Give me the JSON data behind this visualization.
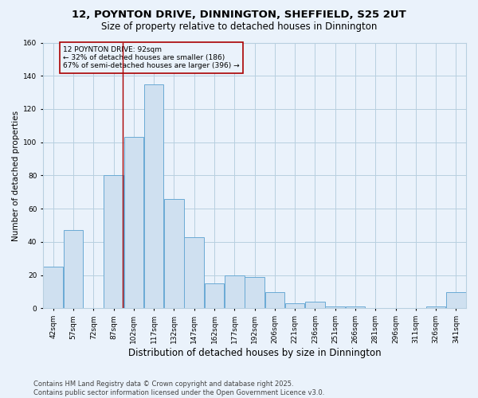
{
  "title_line1": "12, POYNTON DRIVE, DINNINGTON, SHEFFIELD, S25 2UT",
  "title_line2": "Size of property relative to detached houses in Dinnington",
  "xlabel": "Distribution of detached houses by size in Dinnington",
  "ylabel": "Number of detached properties",
  "bar_color": "#cfe0f0",
  "bar_edge_color": "#6aaad4",
  "grid_color": "#b8cfe0",
  "background_color": "#eaf2fb",
  "annotation_box_color": "#aa0000",
  "annotation_text": "12 POYNTON DRIVE: 92sqm\n← 32% of detached houses are smaller (186)\n67% of semi-detached houses are larger (396) →",
  "property_line_x": 2,
  "bin_labels": [
    "42sqm",
    "57sqm",
    "72sqm",
    "87sqm",
    "102sqm",
    "117sqm",
    "132sqm",
    "147sqm",
    "162sqm",
    "177sqm",
    "192sqm",
    "206sqm",
    "221sqm",
    "236sqm",
    "251sqm",
    "266sqm",
    "281sqm",
    "296sqm",
    "311sqm",
    "326sqm",
    "341sqm"
  ],
  "values": [
    25,
    47,
    0,
    80,
    103,
    135,
    66,
    43,
    15,
    20,
    19,
    10,
    3,
    4,
    1,
    1,
    0,
    0,
    0,
    1,
    10
  ],
  "n_bins": 21,
  "ylim": [
    0,
    160
  ],
  "yticks": [
    0,
    20,
    40,
    60,
    80,
    100,
    120,
    140,
    160
  ],
  "footer_line1": "Contains HM Land Registry data © Crown copyright and database right 2025.",
  "footer_line2": "Contains public sector information licensed under the Open Government Licence v3.0.",
  "title_fontsize": 9.5,
  "subtitle_fontsize": 8.5,
  "xlabel_fontsize": 8.5,
  "ylabel_fontsize": 7.5,
  "tick_fontsize": 6.5,
  "annotation_fontsize": 6.5,
  "footer_fontsize": 6.0
}
